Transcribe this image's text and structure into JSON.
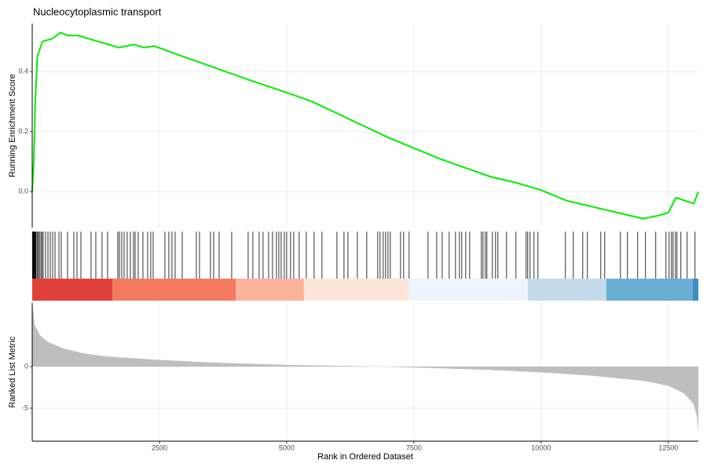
{
  "chart_data": [
    {
      "type": "line",
      "title": "Nucleocytoplasmic transport",
      "ylabel": "Running Enrichment Score",
      "color": "#00ee00",
      "x": [
        0,
        30,
        60,
        100,
        200,
        400,
        550,
        700,
        900,
        1200,
        1500,
        1700,
        2000,
        2200,
        2400,
        2800,
        3300,
        3800,
        4300,
        5000,
        5500,
        6000,
        6500,
        7000,
        7500,
        8000,
        8500,
        9000,
        9500,
        10000,
        10500,
        11000,
        11500,
        12000,
        12300,
        12500,
        12650,
        13000,
        13090
      ],
      "values": [
        0,
        0.1,
        0.3,
        0.45,
        0.5,
        0.51,
        0.53,
        0.52,
        0.52,
        0.505,
        0.49,
        0.48,
        0.49,
        0.48,
        0.485,
        0.46,
        0.43,
        0.4,
        0.37,
        0.33,
        0.3,
        0.26,
        0.22,
        0.18,
        0.145,
        0.11,
        0.08,
        0.05,
        0.03,
        0.005,
        -0.03,
        -0.05,
        -0.07,
        -0.09,
        -0.08,
        -0.07,
        -0.02,
        -0.04,
        0
      ],
      "xlim": [
        0,
        13090
      ],
      "xticks": [
        2500,
        5000,
        7500,
        10000,
        12500
      ],
      "ylim": [
        -0.12,
        0.56
      ],
      "yticks": [
        {
          "value": 0,
          "label": "0.0"
        },
        {
          "value": 0.2,
          "label": "0.2"
        },
        {
          "value": 0.4,
          "label": "0.4"
        }
      ],
      "grid": true
    },
    {
      "type": "rug",
      "xlim": [
        0,
        13090
      ],
      "color": "#000000",
      "hits": [
        5,
        15,
        25,
        35,
        45,
        55,
        65,
        77,
        100,
        123,
        140,
        170,
        190,
        216,
        262,
        309,
        355,
        401,
        448,
        525,
        571,
        694,
        818,
        880,
        957,
        1157,
        1250,
        1373,
        1481,
        1682,
        1713,
        1759,
        1806,
        1867,
        1929,
        1991,
        2022,
        2083,
        2176,
        2269,
        2330,
        2377,
        2608,
        2685,
        2747,
        2809,
        2948,
        3225,
        3287,
        3503,
        3565,
        3673,
        3920,
        4244,
        4336,
        4460,
        4537,
        4645,
        4722,
        4799,
        4846,
        4892,
        4954,
        5000,
        5077,
        5139,
        5247,
        5386,
        5540,
        5694,
        5988,
        6127,
        6204,
        6389,
        6574,
        6790,
        6836,
        6898,
        6944,
        6991,
        7037,
        7238,
        7299,
        7407,
        7778,
        7948,
        8056,
        8194,
        8318,
        8395,
        8441,
        8519,
        8596,
        8827,
        8858,
        8904,
        8935,
        9043,
        9105,
        9151,
        9321,
        9506,
        9707,
        9738,
        9784,
        9861,
        9938,
        10478,
        10633,
        10818,
        10910,
        11173,
        11250,
        11559,
        11698,
        11898,
        12052,
        12253,
        12454,
        12515,
        12562,
        12593,
        12639,
        12670,
        12747,
        12870,
        13025
      ],
      "band_edges": [
        0,
        1574,
        4000,
        5340,
        7392,
        9738,
        11281,
        12978,
        13090
      ],
      "band_colors": [
        "#e2403a",
        "#f47a60",
        "#fbb39c",
        "#fee5d9",
        "#eef3fc",
        "#c3dbea",
        "#6aadd5",
        "#3d8dc4"
      ]
    },
    {
      "type": "area",
      "ylabel": "Ranked List Metric",
      "xlabel": "Rank in Ordered Dataset",
      "color": "#bebebe",
      "x": [
        0,
        50,
        150,
        300,
        600,
        1000,
        1500,
        2500,
        3500,
        5000,
        6500,
        7500,
        9000,
        10000,
        11000,
        12000,
        12500,
        12800,
        13000,
        13060,
        13090
      ],
      "values": [
        7.5,
        5,
        3.8,
        3,
        2.2,
        1.6,
        1.2,
        0.8,
        0.5,
        0.2,
        0.05,
        -0.1,
        -0.4,
        -0.7,
        -1.1,
        -1.7,
        -2.3,
        -3.2,
        -4.5,
        -6,
        -8
      ],
      "xlim": [
        0,
        13090
      ],
      "xticks": [
        2500,
        5000,
        7500,
        10000,
        12500
      ],
      "ylim": [
        -8.96,
        7.64
      ],
      "yticks": [
        -5,
        0
      ],
      "grid": true
    }
  ]
}
